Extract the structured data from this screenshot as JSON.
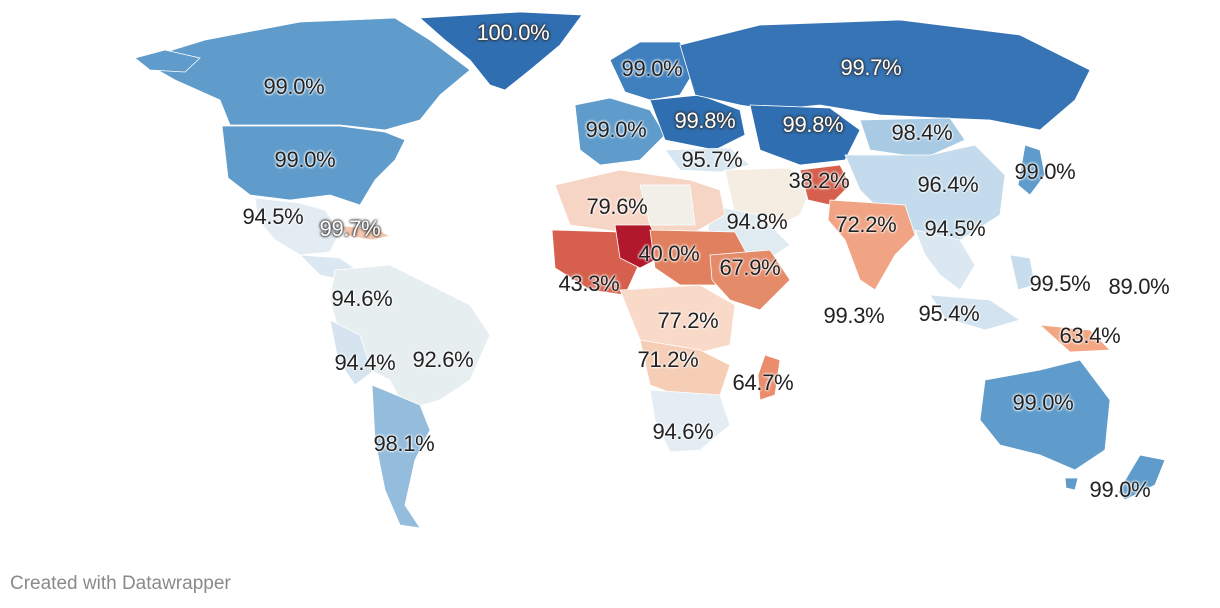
{
  "footer": {
    "credit": "Created with Datawrapper"
  },
  "colors": {
    "scale_low": "#b2182b",
    "scale_mid": "#f7f7f7",
    "scale_high": "#2166ac"
  },
  "labels": [
    {
      "id": "greenland",
      "text": "100.0%",
      "tone": "light"
    },
    {
      "id": "canada",
      "text": "99.0%",
      "tone": "dark"
    },
    {
      "id": "usa",
      "text": "99.0%",
      "tone": "dark"
    },
    {
      "id": "mexico",
      "text": "94.5%",
      "tone": "dark"
    },
    {
      "id": "cuba",
      "text": "99.7%",
      "tone": "light"
    },
    {
      "id": "colombia",
      "text": "94.6%",
      "tone": "dark"
    },
    {
      "id": "peru",
      "text": "94.4%",
      "tone": "dark"
    },
    {
      "id": "brazil",
      "text": "92.6%",
      "tone": "dark"
    },
    {
      "id": "argentina",
      "text": "98.1%",
      "tone": "dark"
    },
    {
      "id": "scandinavia",
      "text": "99.0%",
      "tone": "dark"
    },
    {
      "id": "europe_west",
      "text": "99.0%",
      "tone": "dark"
    },
    {
      "id": "europe_east",
      "text": "99.8%",
      "tone": "light"
    },
    {
      "id": "turkey",
      "text": "95.7%",
      "tone": "dark"
    },
    {
      "id": "russia",
      "text": "99.7%",
      "tone": "light"
    },
    {
      "id": "kazakhstan",
      "text": "99.8%",
      "tone": "light"
    },
    {
      "id": "mongolia",
      "text": "98.4%",
      "tone": "dark"
    },
    {
      "id": "afghanistan",
      "text": "38.2%",
      "tone": "dark"
    },
    {
      "id": "china",
      "text": "96.4%",
      "tone": "dark"
    },
    {
      "id": "japan",
      "text": "99.0%",
      "tone": "dark"
    },
    {
      "id": "algeria",
      "text": "79.6%",
      "tone": "dark"
    },
    {
      "id": "saudi",
      "text": "94.8%",
      "tone": "dark"
    },
    {
      "id": "india",
      "text": "72.2%",
      "tone": "dark"
    },
    {
      "id": "thailand",
      "text": "94.5%",
      "tone": "dark"
    },
    {
      "id": "niger",
      "text": "40.0%",
      "tone": "dark"
    },
    {
      "id": "ethiopia",
      "text": "67.9%",
      "tone": "dark"
    },
    {
      "id": "west_africa",
      "text": "43.3%",
      "tone": "dark"
    },
    {
      "id": "philippines",
      "text": "99.5%",
      "tone": "dark"
    },
    {
      "id": "micronesia",
      "text": "89.0%",
      "tone": "dark"
    },
    {
      "id": "maldives",
      "text": "99.3%",
      "tone": "dark"
    },
    {
      "id": "indonesia",
      "text": "95.4%",
      "tone": "dark"
    },
    {
      "id": "drc",
      "text": "77.2%",
      "tone": "dark"
    },
    {
      "id": "png",
      "text": "63.4%",
      "tone": "dark"
    },
    {
      "id": "angola",
      "text": "71.2%",
      "tone": "dark"
    },
    {
      "id": "madagascar",
      "text": "64.7%",
      "tone": "dark"
    },
    {
      "id": "south_africa",
      "text": "94.6%",
      "tone": "dark"
    },
    {
      "id": "australia",
      "text": "99.0%",
      "tone": "dark"
    },
    {
      "id": "new_zealand",
      "text": "99.0%",
      "tone": "dark"
    }
  ]
}
